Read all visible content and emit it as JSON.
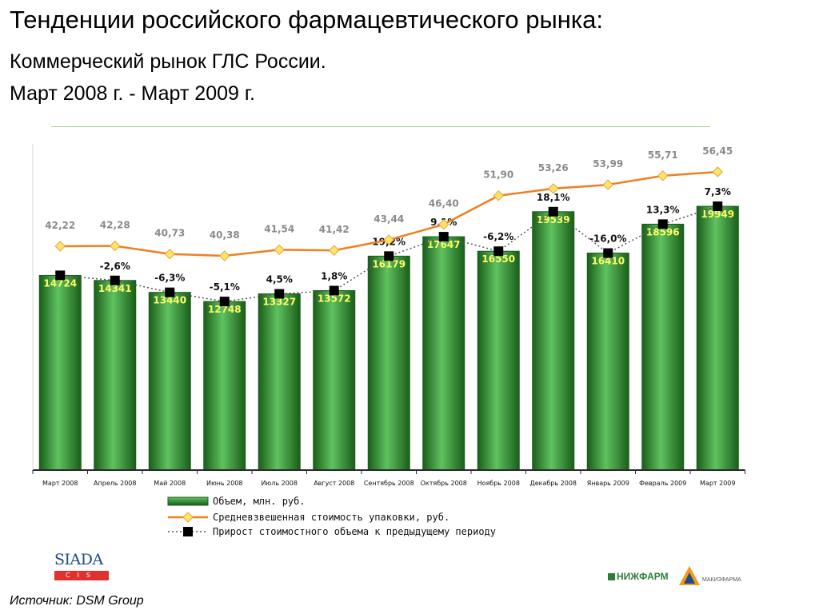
{
  "header": {
    "title": "Тенденции российского фармацевтического рынка:",
    "subtitle1": "Коммерческий рынок ГЛС России.",
    "subtitle2": "Март 2008 г. - Март 2009 г."
  },
  "footer": {
    "source": "Источник: DSM Group",
    "logo_siada": "SIADA",
    "logo_siada_sub": "CIS",
    "logo_nizhpharm": "НИЖФАРМ",
    "logo_makiz": "МАКИЗ",
    "logo_makiz_sub": "ФАРМА"
  },
  "colors": {
    "bar": "#2d8a2d",
    "bar_dark": "#1a5e1a",
    "bar_light": "#5fc25f",
    "bar_label": "#ffff66",
    "price_line": "#f07f1e",
    "price_marker": "#ffe36b",
    "price_label": "#8a8a8a",
    "growth_marker": "#000000",
    "axis": "#2a2a2a"
  },
  "chart_data": {
    "type": "bar",
    "categories": [
      "Март 2008",
      "Апрель 2008",
      "Май 2008",
      "Июнь 2008",
      "Июль 2008",
      "Август 2008",
      "Сентябрь 2008",
      "Октябрь 2008",
      "Ноябрь 2008",
      "Декабрь 2008",
      "Январь 2009",
      "Февраль 2009",
      "Март 2009"
    ],
    "series": [
      {
        "name": "Объем, млн. руб.",
        "type": "bar",
        "values": [
          14724,
          14341,
          13440,
          12748,
          13327,
          13572,
          16179,
          17647,
          16550,
          19539,
          16410,
          18596,
          19949
        ],
        "labels": [
          "14724",
          "14341",
          "13440",
          "12748",
          "13327",
          "13572",
          "16179",
          "17647",
          "16550",
          "19539",
          "16410",
          "18596",
          "19949"
        ]
      },
      {
        "name": "Средневзвешенная стоимость упаковки, руб.",
        "type": "line",
        "values": [
          42.22,
          42.28,
          40.73,
          40.38,
          41.54,
          41.42,
          43.44,
          46.4,
          51.9,
          53.26,
          53.99,
          55.71,
          56.45
        ],
        "labels": [
          "42,22",
          "42,28",
          "40,73",
          "40,38",
          "41,54",
          "41,42",
          "43,44",
          "46,40",
          "51,90",
          "53,26",
          "53,99",
          "55,71",
          "56,45"
        ]
      },
      {
        "name": "Прирост стоимостного объема к предыдущему периоду",
        "type": "line",
        "values": [
          null,
          -2.6,
          -6.3,
          -5.1,
          4.5,
          1.8,
          19.2,
          9.1,
          -6.2,
          18.1,
          -16.0,
          13.3,
          7.3
        ],
        "labels": [
          "",
          "-2,6%",
          "-6,3%",
          "-5,1%",
          "4,5%",
          "1,8%",
          "19,2%",
          "9,1%",
          "-6,2%",
          "18,1%",
          "-16,0%",
          "13,3%",
          "7,3%"
        ]
      }
    ],
    "legend_position": "bottom"
  }
}
